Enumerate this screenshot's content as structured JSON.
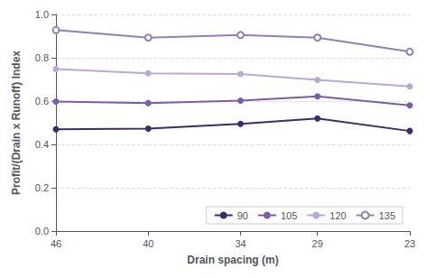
{
  "chart_data": {
    "type": "line",
    "x": [
      46,
      40,
      34,
      29,
      23
    ],
    "series": [
      {
        "name": "90",
        "color": "#3d2b6b",
        "marker": "circle",
        "values": [
          0.47,
          0.473,
          0.495,
          0.52,
          0.462
        ]
      },
      {
        "name": "105",
        "color": "#7b5ea7",
        "marker": "circle",
        "values": [
          0.598,
          0.591,
          0.602,
          0.622,
          0.58
        ]
      },
      {
        "name": "120",
        "color": "#bba8d4",
        "marker": "circle",
        "values": [
          0.748,
          0.728,
          0.725,
          0.698,
          0.668
        ]
      },
      {
        "name": "135",
        "color": "#9080b8",
        "marker": "open_circle",
        "values": [
          0.928,
          0.893,
          0.905,
          0.893,
          0.828
        ]
      }
    ],
    "x_label": "Drain spacing (m)",
    "y_label": "Profit/(Drain x Runoff) Index",
    "xlim": [
      46,
      23
    ],
    "xticks": [
      46,
      40,
      34,
      29,
      23
    ],
    "ylim": [
      0.0,
      1.0
    ],
    "yticks": [
      {
        "value": 0.0,
        "label": "0.0"
      },
      0.2,
      0.4,
      0.6,
      0.8,
      {
        "value": 1.0,
        "label": "1.0"
      }
    ],
    "grid": true,
    "legend": "lower right"
  }
}
